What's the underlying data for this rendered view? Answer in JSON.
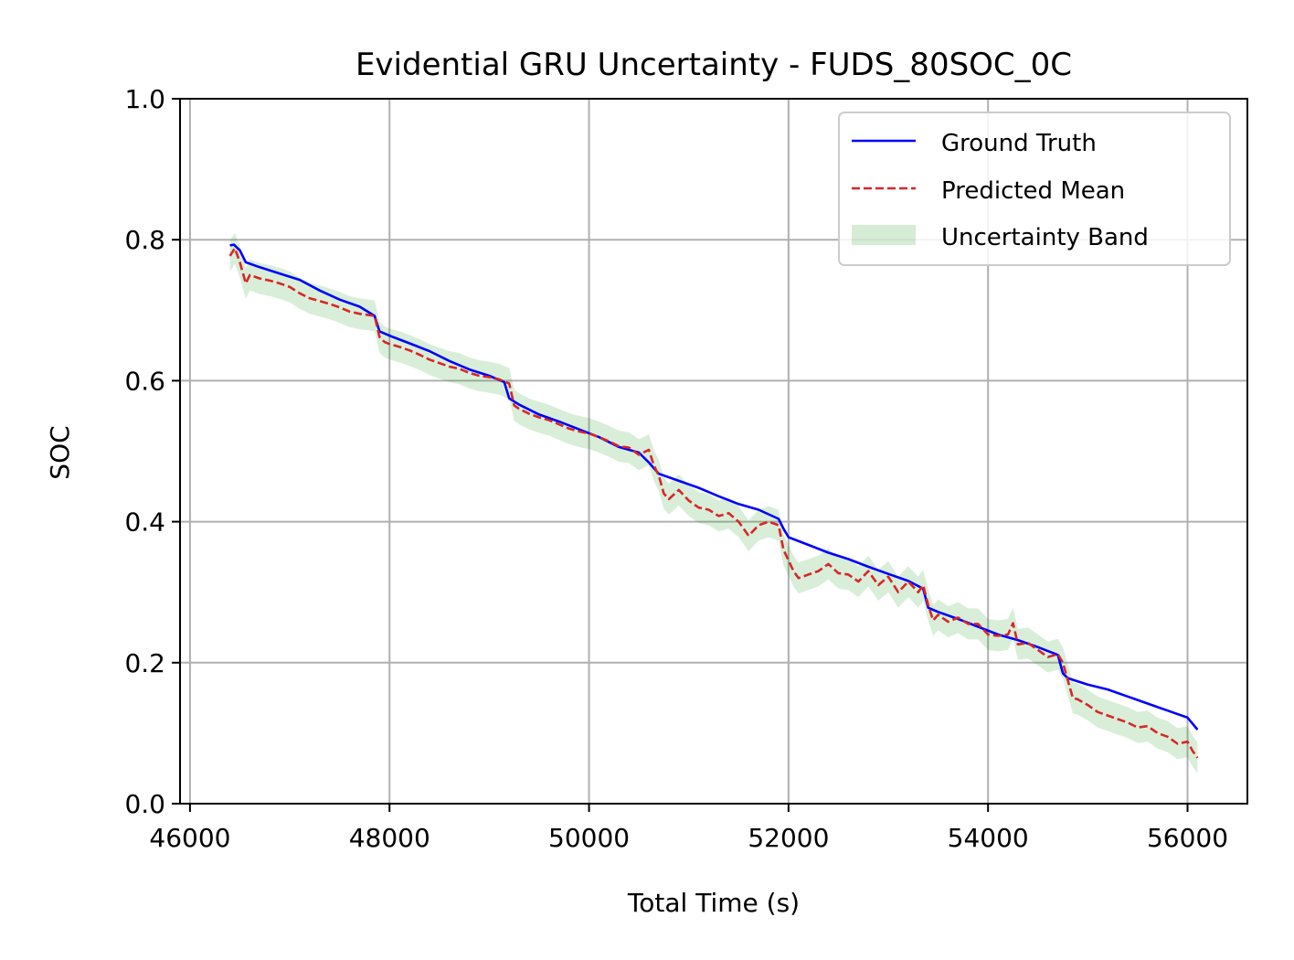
{
  "chart_data": {
    "type": "line",
    "title": "Evidential GRU Uncertainty - FUDS_80SOC_0C",
    "xlabel": "Total Time (s)",
    "ylabel": "SOC",
    "xlim": [
      45900,
      56600
    ],
    "ylim": [
      0.0,
      1.0
    ],
    "xticks": [
      46000,
      48000,
      50000,
      52000,
      54000,
      56000
    ],
    "yticks": [
      0.0,
      0.2,
      0.4,
      0.6,
      0.8,
      1.0
    ],
    "ytick_labels": [
      "0.0",
      "0.2",
      "0.4",
      "0.6",
      "0.8",
      "1.0"
    ],
    "grid": true,
    "legend_position": "top-right",
    "colors": {
      "ground_truth": "#0000ff",
      "predicted": "#d62728",
      "band": "#2ca02c"
    },
    "series": [
      {
        "name": "Ground Truth",
        "style": "solid",
        "x": [
          46400,
          46440,
          46500,
          46560,
          46700,
          46900,
          47100,
          47300,
          47500,
          47700,
          47850,
          47900,
          48000,
          48200,
          48400,
          48600,
          48800,
          49000,
          49150,
          49200,
          49300,
          49500,
          49700,
          49900,
          50100,
          50300,
          50500,
          50600,
          50700,
          50900,
          51100,
          51300,
          51500,
          51700,
          51900,
          51950,
          52000,
          52200,
          52400,
          52600,
          52800,
          53000,
          53200,
          53350,
          53400,
          53500,
          53700,
          53900,
          54100,
          54300,
          54500,
          54700,
          54750,
          54800,
          55000,
          55200,
          55400,
          55600,
          55800,
          56000,
          56100
        ],
        "y": [
          0.792,
          0.793,
          0.785,
          0.768,
          0.761,
          0.752,
          0.743,
          0.728,
          0.715,
          0.705,
          0.692,
          0.67,
          0.664,
          0.653,
          0.642,
          0.628,
          0.616,
          0.607,
          0.598,
          0.575,
          0.566,
          0.552,
          0.542,
          0.531,
          0.52,
          0.506,
          0.498,
          0.484,
          0.468,
          0.458,
          0.448,
          0.436,
          0.425,
          0.417,
          0.404,
          0.39,
          0.378,
          0.367,
          0.356,
          0.347,
          0.336,
          0.326,
          0.316,
          0.305,
          0.278,
          0.272,
          0.262,
          0.251,
          0.24,
          0.232,
          0.222,
          0.211,
          0.185,
          0.178,
          0.169,
          0.162,
          0.152,
          0.142,
          0.132,
          0.122,
          0.105
        ]
      },
      {
        "name": "Predicted Mean",
        "style": "dashed",
        "x": [
          46400,
          46450,
          46500,
          46560,
          46600,
          46700,
          46800,
          46900,
          47000,
          47100,
          47200,
          47300,
          47400,
          47500,
          47600,
          47700,
          47850,
          47900,
          47950,
          48000,
          48100,
          48200,
          48300,
          48400,
          48500,
          48600,
          48700,
          48800,
          48900,
          49000,
          49100,
          49200,
          49250,
          49300,
          49400,
          49500,
          49600,
          49700,
          49800,
          49900,
          50000,
          50100,
          50200,
          50300,
          50400,
          50500,
          50600,
          50650,
          50700,
          50750,
          50800,
          50900,
          51000,
          51100,
          51200,
          51300,
          51400,
          51500,
          51600,
          51700,
          51800,
          51900,
          51950,
          52000,
          52050,
          52100,
          52200,
          52300,
          52400,
          52500,
          52600,
          52700,
          52800,
          52900,
          53000,
          53100,
          53200,
          53300,
          53350,
          53400,
          53450,
          53500,
          53600,
          53700,
          53800,
          53900,
          54000,
          54100,
          54200,
          54250,
          54300,
          54400,
          54500,
          54600,
          54700,
          54750,
          54800,
          54850,
          54900,
          55000,
          55100,
          55200,
          55300,
          55400,
          55500,
          55600,
          55700,
          55800,
          55900,
          56000,
          56050,
          56100
        ],
        "y": [
          0.777,
          0.788,
          0.768,
          0.738,
          0.75,
          0.745,
          0.742,
          0.738,
          0.733,
          0.724,
          0.717,
          0.713,
          0.709,
          0.704,
          0.698,
          0.695,
          0.692,
          0.662,
          0.655,
          0.652,
          0.648,
          0.643,
          0.637,
          0.63,
          0.625,
          0.62,
          0.617,
          0.611,
          0.607,
          0.605,
          0.602,
          0.596,
          0.565,
          0.56,
          0.553,
          0.548,
          0.544,
          0.538,
          0.532,
          0.528,
          0.525,
          0.52,
          0.514,
          0.507,
          0.505,
          0.495,
          0.502,
          0.48,
          0.465,
          0.44,
          0.432,
          0.445,
          0.43,
          0.42,
          0.417,
          0.408,
          0.412,
          0.4,
          0.38,
          0.395,
          0.4,
          0.395,
          0.36,
          0.345,
          0.33,
          0.32,
          0.325,
          0.33,
          0.34,
          0.327,
          0.325,
          0.315,
          0.33,
          0.31,
          0.322,
          0.3,
          0.315,
          0.3,
          0.31,
          0.282,
          0.26,
          0.268,
          0.258,
          0.264,
          0.255,
          0.255,
          0.24,
          0.238,
          0.24,
          0.256,
          0.226,
          0.228,
          0.218,
          0.208,
          0.212,
          0.2,
          0.175,
          0.15,
          0.148,
          0.14,
          0.13,
          0.125,
          0.12,
          0.115,
          0.108,
          0.11,
          0.1,
          0.095,
          0.085,
          0.088,
          0.075,
          0.065
        ]
      }
    ],
    "band": {
      "name": "Uncertainty Band",
      "half_width": 0.022
    }
  }
}
